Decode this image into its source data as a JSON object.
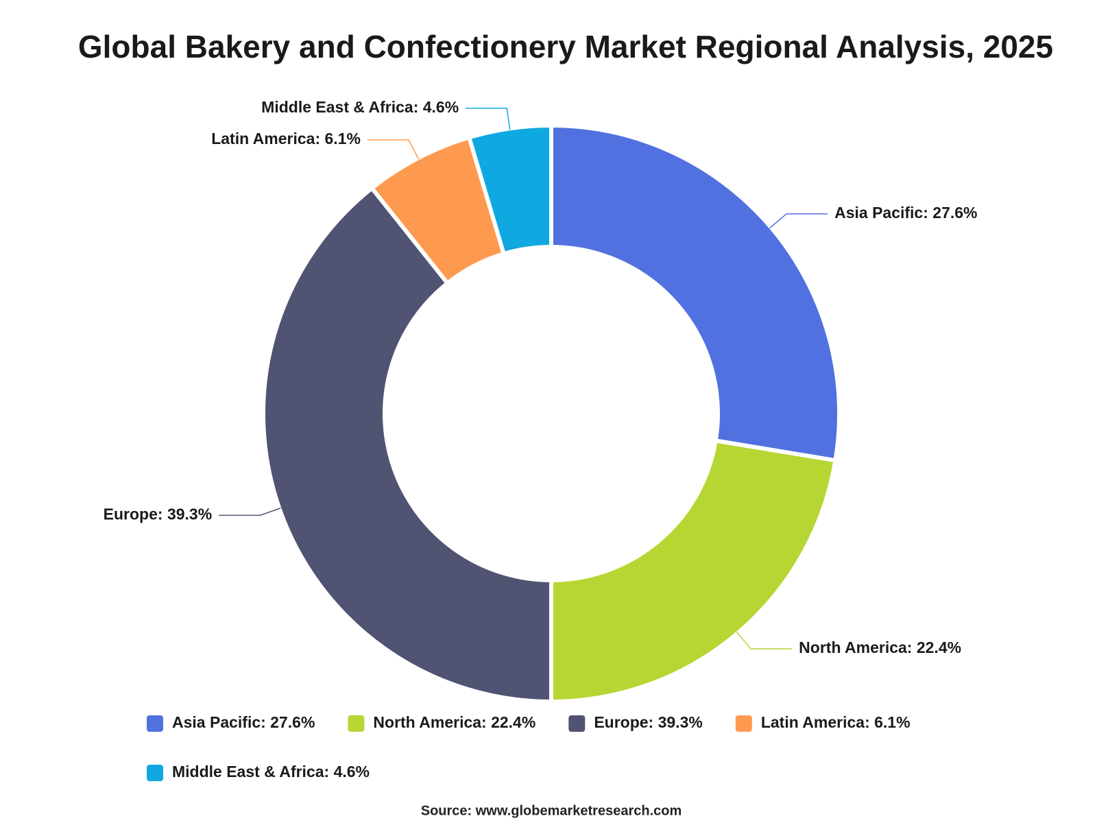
{
  "chart_data": {
    "type": "donut",
    "title": "Global Bakery and Confectionery Market Regional Analysis, 2025",
    "values": [
      27.6,
      22.4,
      39.3,
      6.1,
      4.6
    ],
    "value_labels": [
      "Asia Pacific: 27.6%",
      "North America: 22.4%",
      "Europe: 39.3%",
      "Latin America: 6.1%",
      "Middle East & Africa: 4.6%"
    ],
    "colors": [
      "#5171e0",
      "#b6d733",
      "#505372",
      "#fd9a50",
      "#10a8e0"
    ],
    "source": "Source: www.globemarketresearch.com"
  }
}
